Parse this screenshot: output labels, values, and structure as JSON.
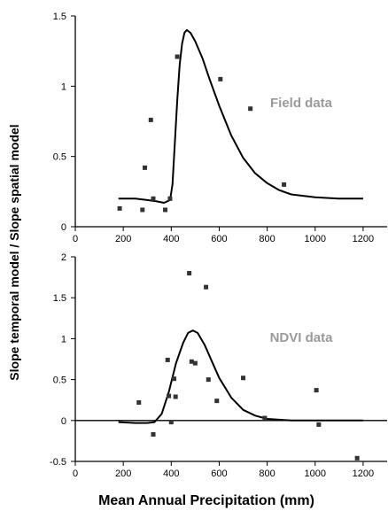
{
  "figure": {
    "ylabel": "Slope temporal model / Slope spatial model",
    "xlabel": "Mean Annual Precipitation (mm)",
    "colors": {
      "axis": "#000000",
      "marker": "#333333",
      "curve": "#000000",
      "annotation": "#9a9a9a"
    }
  },
  "chart_data": [
    {
      "type": "scatter",
      "annotation": "Field data",
      "xlim": [
        0,
        1300
      ],
      "ylim": [
        0,
        1.5
      ],
      "xticks": [
        0,
        200,
        400,
        600,
        800,
        1000,
        1200
      ],
      "yticks": [
        0,
        0.5,
        1,
        1.5
      ],
      "xtick_labels": [
        "0",
        "200",
        "400",
        "600",
        "800",
        "1000",
        "1200"
      ],
      "ytick_labels": [
        "0",
        "0.5",
        "1",
        "1.5"
      ],
      "points": [
        {
          "x": 185,
          "y": 0.13
        },
        {
          "x": 280,
          "y": 0.12
        },
        {
          "x": 290,
          "y": 0.42
        },
        {
          "x": 315,
          "y": 0.76
        },
        {
          "x": 325,
          "y": 0.2
        },
        {
          "x": 375,
          "y": 0.12
        },
        {
          "x": 395,
          "y": 0.2
        },
        {
          "x": 425,
          "y": 1.21
        },
        {
          "x": 605,
          "y": 1.05
        },
        {
          "x": 730,
          "y": 0.84
        },
        {
          "x": 870,
          "y": 0.3
        }
      ],
      "curve": [
        [
          180,
          0.2
        ],
        [
          250,
          0.2
        ],
        [
          300,
          0.19
        ],
        [
          340,
          0.18
        ],
        [
          370,
          0.17
        ],
        [
          395,
          0.19
        ],
        [
          405,
          0.3
        ],
        [
          415,
          0.6
        ],
        [
          425,
          0.9
        ],
        [
          435,
          1.15
        ],
        [
          445,
          1.3
        ],
        [
          455,
          1.38
        ],
        [
          465,
          1.4
        ],
        [
          480,
          1.38
        ],
        [
          500,
          1.32
        ],
        [
          530,
          1.2
        ],
        [
          560,
          1.05
        ],
        [
          600,
          0.86
        ],
        [
          650,
          0.65
        ],
        [
          700,
          0.49
        ],
        [
          750,
          0.38
        ],
        [
          800,
          0.31
        ],
        [
          850,
          0.26
        ],
        [
          900,
          0.23
        ],
        [
          1000,
          0.21
        ],
        [
          1100,
          0.2
        ],
        [
          1200,
          0.2
        ]
      ]
    },
    {
      "type": "scatter",
      "annotation": "NDVI data",
      "xlim": [
        0,
        1300
      ],
      "ylim": [
        -0.5,
        2
      ],
      "xticks": [
        0,
        200,
        400,
        600,
        800,
        1000,
        1200
      ],
      "yticks": [
        -0.5,
        0,
        0.5,
        1,
        1.5,
        2
      ],
      "xtick_labels": [
        "0",
        "200",
        "400",
        "600",
        "800",
        "1000",
        "1200"
      ],
      "ytick_labels": [
        "-0.5",
        "0",
        "0.5",
        "1",
        "1.5",
        "2"
      ],
      "zero_line": true,
      "points": [
        {
          "x": 265,
          "y": 0.22
        },
        {
          "x": 325,
          "y": -0.17
        },
        {
          "x": 385,
          "y": 0.74
        },
        {
          "x": 390,
          "y": 0.3
        },
        {
          "x": 400,
          "y": -0.02
        },
        {
          "x": 412,
          "y": 0.51
        },
        {
          "x": 418,
          "y": 0.29
        },
        {
          "x": 475,
          "y": 1.8
        },
        {
          "x": 485,
          "y": 0.72
        },
        {
          "x": 500,
          "y": 0.7
        },
        {
          "x": 545,
          "y": 1.63
        },
        {
          "x": 555,
          "y": 0.5
        },
        {
          "x": 590,
          "y": 0.24
        },
        {
          "x": 700,
          "y": 0.52
        },
        {
          "x": 790,
          "y": 0.03
        },
        {
          "x": 1005,
          "y": 0.37
        },
        {
          "x": 1015,
          "y": -0.05
        },
        {
          "x": 1175,
          "y": -0.46
        }
      ],
      "curve": [
        [
          180,
          -0.02
        ],
        [
          250,
          -0.03
        ],
        [
          300,
          -0.03
        ],
        [
          330,
          -0.02
        ],
        [
          360,
          0.08
        ],
        [
          390,
          0.35
        ],
        [
          420,
          0.7
        ],
        [
          450,
          0.95
        ],
        [
          470,
          1.07
        ],
        [
          490,
          1.1
        ],
        [
          510,
          1.07
        ],
        [
          540,
          0.92
        ],
        [
          570,
          0.72
        ],
        [
          600,
          0.52
        ],
        [
          650,
          0.28
        ],
        [
          700,
          0.13
        ],
        [
          750,
          0.06
        ],
        [
          800,
          0.02
        ],
        [
          900,
          0.0
        ],
        [
          1000,
          0.0
        ],
        [
          1100,
          0.0
        ],
        [
          1200,
          0.0
        ]
      ]
    }
  ]
}
